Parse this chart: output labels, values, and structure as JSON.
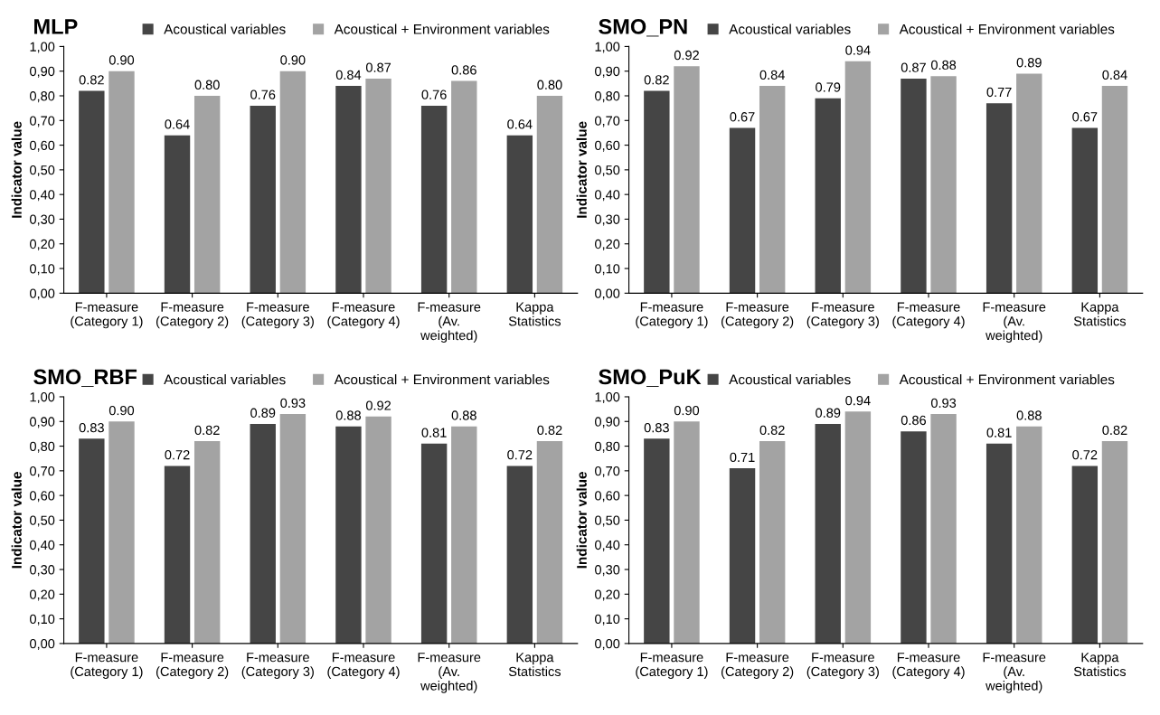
{
  "chart_data": [
    {
      "type": "bar",
      "title": "MLP",
      "ylabel": "Indicator value",
      "categories": [
        "F-measure\n(Category 1)",
        "F-measure\n(Category 2)",
        "F-measure\n(Category 3)",
        "F-measure\n(Category 4)",
        "F-measure\n(Av.\nweighted)",
        "Kappa\nStatistics"
      ],
      "series": [
        {
          "name": "Acoustical variables",
          "color": "#454545",
          "values": [
            0.82,
            0.64,
            0.76,
            0.84,
            0.76,
            0.64
          ],
          "value_labels": [
            "0.82",
            "0.64",
            "0.76",
            "0.84",
            "0.76",
            "0.64"
          ]
        },
        {
          "name": "Acoustical + Environment variables",
          "color": "#a3a3a3",
          "values": [
            0.9,
            0.8,
            0.9,
            0.87,
            0.86,
            0.8
          ],
          "value_labels": [
            "0.90",
            "0.80",
            "0.90",
            "0.87",
            "0.86",
            "0.80"
          ]
        }
      ],
      "ylim": [
        0,
        1
      ],
      "yticks": [
        {
          "value": 0,
          "label": "0,00"
        },
        {
          "value": 0.1,
          "label": "0,10"
        },
        {
          "value": 0.2,
          "label": "0,20"
        },
        {
          "value": 0.3,
          "label": "0,30"
        },
        {
          "value": 0.4,
          "label": "0,40"
        },
        {
          "value": 0.5,
          "label": "0,50"
        },
        {
          "value": 0.6,
          "label": "0,60"
        },
        {
          "value": 0.7,
          "label": "0,70"
        },
        {
          "value": 0.8,
          "label": "0,80"
        },
        {
          "value": 0.9,
          "label": "0,90"
        },
        {
          "value": 1.0,
          "label": "1,00"
        }
      ],
      "grid": false,
      "legend": "top"
    },
    {
      "type": "bar",
      "title": "SMO_PN",
      "ylabel": "Indicator value",
      "categories": [
        "F-measure\n(Category 1)",
        "F-measure\n(Category 2)",
        "F-measure\n(Category 3)",
        "F-measure\n(Category 4)",
        "F-measure\n(Av.\nweighted)",
        "Kappa\nStatistics"
      ],
      "series": [
        {
          "name": "Acoustical variables",
          "color": "#454545",
          "values": [
            0.82,
            0.67,
            0.79,
            0.87,
            0.77,
            0.67
          ],
          "value_labels": [
            "0.82",
            "0.67",
            "0.79",
            "0.87",
            "0.77",
            "0.67"
          ]
        },
        {
          "name": "Acoustical + Environment variables",
          "color": "#a3a3a3",
          "values": [
            0.92,
            0.84,
            0.94,
            0.88,
            0.89,
            0.84
          ],
          "value_labels": [
            "0.92",
            "0.84",
            "0.94",
            "0.88",
            "0.89",
            "0.84"
          ]
        }
      ],
      "ylim": [
        0,
        1
      ],
      "yticks": [
        {
          "value": 0,
          "label": "0,00"
        },
        {
          "value": 0.1,
          "label": "0,10"
        },
        {
          "value": 0.2,
          "label": "0,20"
        },
        {
          "value": 0.3,
          "label": "0,30"
        },
        {
          "value": 0.4,
          "label": "0,40"
        },
        {
          "value": 0.5,
          "label": "0,50"
        },
        {
          "value": 0.6,
          "label": "0,60"
        },
        {
          "value": 0.7,
          "label": "0,70"
        },
        {
          "value": 0.8,
          "label": "0,80"
        },
        {
          "value": 0.9,
          "label": "0,90"
        },
        {
          "value": 1.0,
          "label": "1,00"
        }
      ],
      "grid": false,
      "legend": "top"
    },
    {
      "type": "bar",
      "title": "SMO_RBF",
      "ylabel": "Indicator value",
      "categories": [
        "F-measure\n(Category 1)",
        "F-measure\n(Category 2)",
        "F-measure\n(Category 3)",
        "F-measure\n(Category 4)",
        "F-measure\n(Av.\nweighted)",
        "Kappa\nStatistics"
      ],
      "series": [
        {
          "name": "Acoustical variables",
          "color": "#454545",
          "values": [
            0.83,
            0.72,
            0.89,
            0.88,
            0.81,
            0.72
          ],
          "value_labels": [
            "0.83",
            "0.72",
            "0.89",
            "0.88",
            "0.81",
            "0.72"
          ]
        },
        {
          "name": "Acoustical + Environment variables",
          "color": "#a3a3a3",
          "values": [
            0.9,
            0.82,
            0.93,
            0.92,
            0.88,
            0.82
          ],
          "value_labels": [
            "0.90",
            "0.82",
            "0.93",
            "0.92",
            "0.88",
            "0.82"
          ]
        }
      ],
      "ylim": [
        0,
        1
      ],
      "yticks": [
        {
          "value": 0,
          "label": "0,00"
        },
        {
          "value": 0.1,
          "label": "0,10"
        },
        {
          "value": 0.2,
          "label": "0,20"
        },
        {
          "value": 0.3,
          "label": "0,30"
        },
        {
          "value": 0.4,
          "label": "0,40"
        },
        {
          "value": 0.5,
          "label": "0,50"
        },
        {
          "value": 0.6,
          "label": "0,60"
        },
        {
          "value": 0.7,
          "label": "0,70"
        },
        {
          "value": 0.8,
          "label": "0,80"
        },
        {
          "value": 0.9,
          "label": "0,90"
        },
        {
          "value": 1.0,
          "label": "1,00"
        }
      ],
      "grid": false,
      "legend": "top"
    },
    {
      "type": "bar",
      "title": "SMO_PuK",
      "ylabel": "Indicator value",
      "categories": [
        "F-measure\n(Category 1)",
        "F-measure\n(Category 2)",
        "F-measure\n(Category 3)",
        "F-measure\n(Category 4)",
        "F-measure\n(Av.\nweighted)",
        "Kappa\nStatistics"
      ],
      "series": [
        {
          "name": "Acoustical variables",
          "color": "#454545",
          "values": [
            0.83,
            0.71,
            0.89,
            0.86,
            0.81,
            0.72
          ],
          "value_labels": [
            "0.83",
            "0.71",
            "0.89",
            "0.86",
            "0.81",
            "0.72"
          ]
        },
        {
          "name": "Acoustical + Environment variables",
          "color": "#a3a3a3",
          "values": [
            0.9,
            0.82,
            0.94,
            0.93,
            0.88,
            0.82
          ],
          "value_labels": [
            "0.90",
            "0.82",
            "0.94",
            "0.93",
            "0.88",
            "0.82"
          ]
        }
      ],
      "ylim": [
        0,
        1
      ],
      "yticks": [
        {
          "value": 0,
          "label": "0,00"
        },
        {
          "value": 0.1,
          "label": "0,10"
        },
        {
          "value": 0.2,
          "label": "0,20"
        },
        {
          "value": 0.3,
          "label": "0,30"
        },
        {
          "value": 0.4,
          "label": "0,40"
        },
        {
          "value": 0.5,
          "label": "0,50"
        },
        {
          "value": 0.6,
          "label": "0,60"
        },
        {
          "value": 0.7,
          "label": "0,70"
        },
        {
          "value": 0.8,
          "label": "0,80"
        },
        {
          "value": 0.9,
          "label": "0,90"
        },
        {
          "value": 1.0,
          "label": "1,00"
        }
      ],
      "grid": false,
      "legend": "top"
    }
  ]
}
